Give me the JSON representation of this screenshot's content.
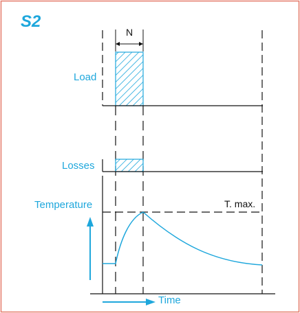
{
  "colors": {
    "border": "#e57a6a",
    "accent": "#1ea7dc",
    "line": "#111111",
    "hatch": "#1ea7dc"
  },
  "title": "S2",
  "labels": {
    "n": "N",
    "load": "Load",
    "losses": "Losses",
    "temperature": "Temperature",
    "t_max": "T. max.",
    "time": "Time"
  }
}
